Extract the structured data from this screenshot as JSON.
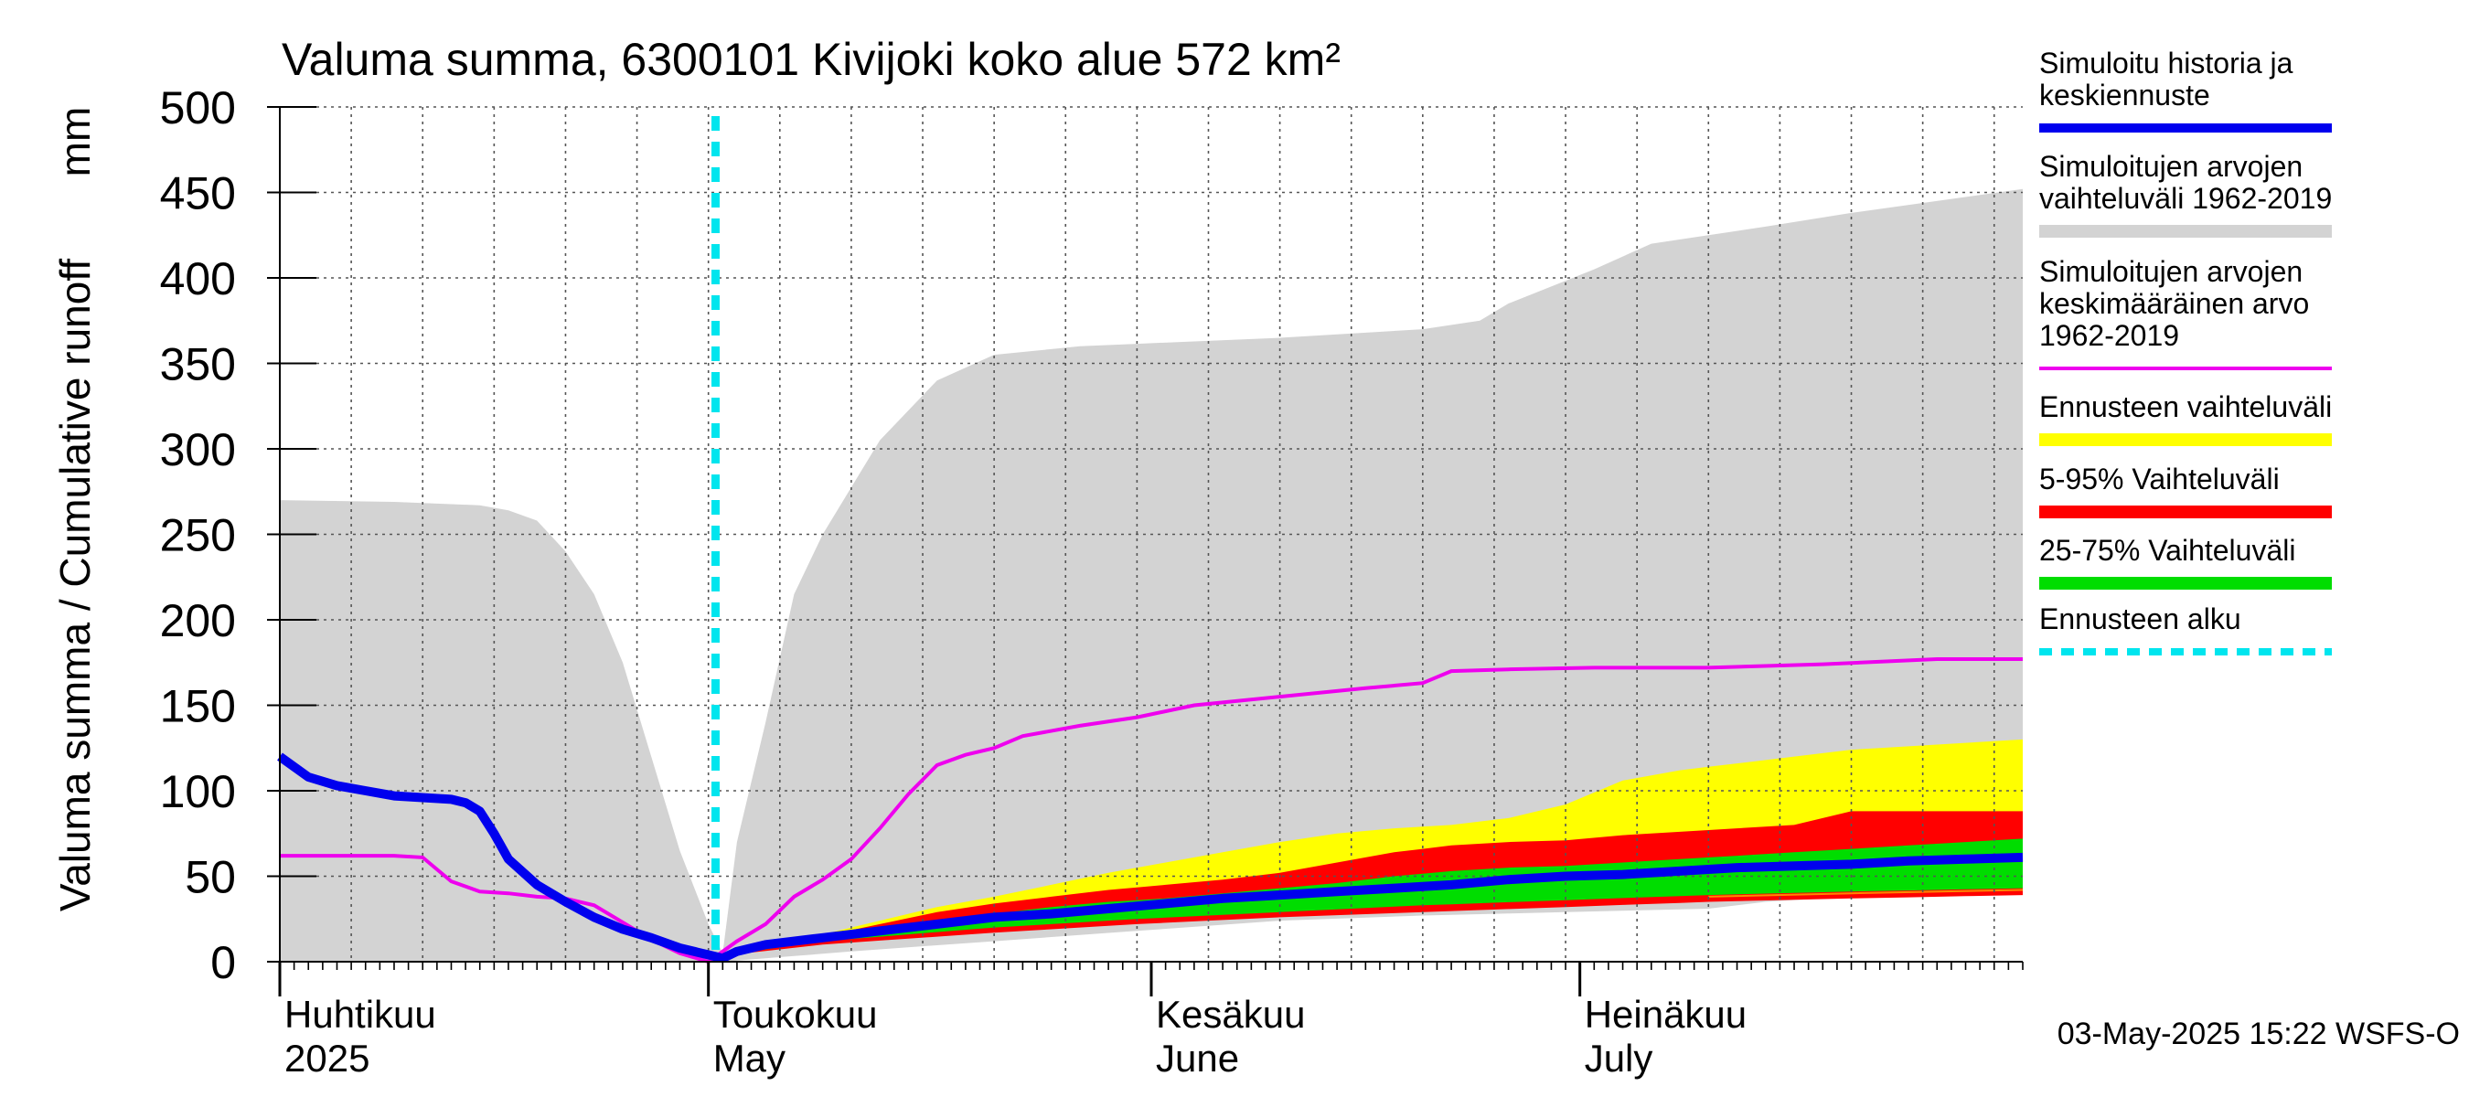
{
  "chart_data": {
    "type": "area",
    "title": "Valuma summa, 6300101 Kivijoki koko alue 572 km²",
    "ylabel": "Valuma summa / Cumulative runoff",
    "yunit": "mm",
    "ylim": [
      0,
      500
    ],
    "yticks": [
      0,
      50,
      100,
      150,
      200,
      250,
      300,
      350,
      400,
      450,
      500
    ],
    "xlim_days": [
      0,
      122
    ],
    "month_ticks": [
      {
        "day": 0,
        "label_fi": "Huhtikuu",
        "label_en": "2025"
      },
      {
        "day": 30,
        "label_fi": "Toukokuu",
        "label_en": "May"
      },
      {
        "day": 61,
        "label_fi": "Kesäkuu",
        "label_en": "June"
      },
      {
        "day": 91,
        "label_fi": "Heinäkuu",
        "label_en": "July"
      }
    ],
    "forecast_start_day": 30.5,
    "legend": [
      {
        "label": "Simuloitu historia ja keskiennuste",
        "color": "#0000ee",
        "style": "line"
      },
      {
        "label": "Simuloitujen arvojen vaihteluväli 1962-2019",
        "color": "#d3d3d3",
        "style": "band"
      },
      {
        "label": "Simuloitujen arvojen keskimääräinen arvo 1962-2019",
        "color": "#ee00ee",
        "style": "line"
      },
      {
        "label": "Ennusteen vaihteluväli",
        "color": "#ffff00",
        "style": "band"
      },
      {
        "label": "5-95% Vaihteluväli",
        "color": "#ff0000",
        "style": "band"
      },
      {
        "label": "25-75% Vaihteluväli",
        "color": "#00dd00",
        "style": "band"
      },
      {
        "label": "Ennusteen alku",
        "color": "#00e5ee",
        "style": "dashed"
      }
    ],
    "series": {
      "gray_range_upper": [
        [
          0,
          270
        ],
        [
          8,
          269
        ],
        [
          14,
          267
        ],
        [
          16,
          264
        ],
        [
          18,
          258
        ],
        [
          20,
          240
        ],
        [
          22,
          215
        ],
        [
          24,
          175
        ],
        [
          26,
          120
        ],
        [
          28,
          65
        ],
        [
          30,
          22
        ],
        [
          31,
          5
        ],
        [
          32,
          70
        ],
        [
          34,
          140
        ],
        [
          36,
          215
        ],
        [
          38,
          250
        ],
        [
          42,
          305
        ],
        [
          46,
          340
        ],
        [
          50,
          355
        ],
        [
          56,
          360
        ],
        [
          70,
          365
        ],
        [
          80,
          370
        ],
        [
          84,
          375
        ],
        [
          86,
          385
        ],
        [
          92,
          405
        ],
        [
          96,
          420
        ],
        [
          104,
          430
        ],
        [
          110,
          438
        ],
        [
          122,
          452
        ]
      ],
      "gray_range_lower": [
        [
          0,
          0
        ],
        [
          30,
          0
        ],
        [
          31,
          0
        ],
        [
          40,
          6
        ],
        [
          50,
          12
        ],
        [
          60,
          18
        ],
        [
          70,
          24
        ],
        [
          80,
          27
        ],
        [
          90,
          29
        ],
        [
          100,
          31
        ],
        [
          104,
          35
        ],
        [
          110,
          38
        ],
        [
          122,
          40
        ]
      ],
      "mean_1962_2019": [
        [
          0,
          62
        ],
        [
          8,
          62
        ],
        [
          10,
          61
        ],
        [
          12,
          47
        ],
        [
          14,
          41
        ],
        [
          16,
          40
        ],
        [
          18,
          38
        ],
        [
          20,
          37
        ],
        [
          22,
          33
        ],
        [
          24,
          23
        ],
        [
          26,
          13
        ],
        [
          28,
          5
        ],
        [
          30,
          0
        ],
        [
          32,
          12
        ],
        [
          34,
          22
        ],
        [
          36,
          38
        ],
        [
          38,
          48
        ],
        [
          40,
          60
        ],
        [
          42,
          78
        ],
        [
          44,
          98
        ],
        [
          46,
          115
        ],
        [
          48,
          121
        ],
        [
          50,
          125
        ],
        [
          52,
          132
        ],
        [
          56,
          138
        ],
        [
          60,
          143
        ],
        [
          64,
          150
        ],
        [
          70,
          155
        ],
        [
          76,
          160
        ],
        [
          80,
          163
        ],
        [
          82,
          170
        ],
        [
          86,
          171
        ],
        [
          92,
          172
        ],
        [
          100,
          172
        ],
        [
          108,
          174
        ],
        [
          116,
          177
        ],
        [
          122,
          177
        ]
      ],
      "yellow_upper": [
        [
          30.5,
          3
        ],
        [
          34,
          10
        ],
        [
          38,
          16
        ],
        [
          42,
          24
        ],
        [
          46,
          32
        ],
        [
          50,
          38
        ],
        [
          54,
          45
        ],
        [
          58,
          52
        ],
        [
          62,
          58
        ],
        [
          66,
          64
        ],
        [
          70,
          70
        ],
        [
          74,
          75
        ],
        [
          78,
          78
        ],
        [
          82,
          80
        ],
        [
          86,
          84
        ],
        [
          90,
          92
        ],
        [
          94,
          106
        ],
        [
          98,
          112
        ],
        [
          102,
          116
        ],
        [
          106,
          120
        ],
        [
          110,
          124
        ],
        [
          114,
          126
        ],
        [
          118,
          128
        ],
        [
          122,
          130
        ]
      ],
      "yellow_lower": [
        [
          30.5,
          3
        ],
        [
          38,
          12
        ],
        [
          50,
          20
        ],
        [
          60,
          26
        ],
        [
          70,
          30
        ],
        [
          80,
          34
        ],
        [
          90,
          36
        ],
        [
          100,
          38
        ],
        [
          110,
          40
        ],
        [
          122,
          42
        ]
      ],
      "red_upper": [
        [
          30.5,
          3
        ],
        [
          34,
          10
        ],
        [
          38,
          15
        ],
        [
          42,
          22
        ],
        [
          46,
          29
        ],
        [
          50,
          34
        ],
        [
          54,
          38
        ],
        [
          58,
          42
        ],
        [
          62,
          45
        ],
        [
          66,
          48
        ],
        [
          70,
          52
        ],
        [
          74,
          58
        ],
        [
          78,
          64
        ],
        [
          82,
          68
        ],
        [
          86,
          70
        ],
        [
          90,
          71
        ],
        [
          94,
          74
        ],
        [
          98,
          76
        ],
        [
          102,
          78
        ],
        [
          106,
          80
        ],
        [
          110,
          88
        ],
        [
          114,
          88
        ],
        [
          118,
          88
        ],
        [
          122,
          88
        ]
      ],
      "red_lower": [
        [
          30.5,
          3
        ],
        [
          38,
          10
        ],
        [
          50,
          17
        ],
        [
          60,
          22
        ],
        [
          70,
          26
        ],
        [
          80,
          29
        ],
        [
          90,
          32
        ],
        [
          100,
          35
        ],
        [
          110,
          37
        ],
        [
          122,
          39
        ]
      ],
      "green_upper": [
        [
          30.5,
          3
        ],
        [
          34,
          10
        ],
        [
          38,
          14
        ],
        [
          42,
          19
        ],
        [
          46,
          24
        ],
        [
          50,
          28
        ],
        [
          54,
          32
        ],
        [
          58,
          35
        ],
        [
          62,
          37
        ],
        [
          66,
          40
        ],
        [
          70,
          43
        ],
        [
          74,
          46
        ],
        [
          78,
          50
        ],
        [
          82,
          53
        ],
        [
          86,
          55
        ],
        [
          90,
          56
        ],
        [
          94,
          58
        ],
        [
          98,
          60
        ],
        [
          102,
          62
        ],
        [
          106,
          64
        ],
        [
          110,
          66
        ],
        [
          114,
          68
        ],
        [
          118,
          70
        ],
        [
          122,
          72
        ]
      ],
      "green_lower": [
        [
          30.5,
          3
        ],
        [
          38,
          12
        ],
        [
          50,
          20
        ],
        [
          60,
          25
        ],
        [
          70,
          29
        ],
        [
          80,
          33
        ],
        [
          90,
          36
        ],
        [
          100,
          39
        ],
        [
          110,
          41
        ],
        [
          122,
          43
        ]
      ],
      "history_and_median": [
        [
          0,
          120
        ],
        [
          2,
          108
        ],
        [
          4,
          103
        ],
        [
          6,
          100
        ],
        [
          8,
          97
        ],
        [
          10,
          96
        ],
        [
          12,
          95
        ],
        [
          13,
          93
        ],
        [
          14,
          88
        ],
        [
          15,
          75
        ],
        [
          16,
          60
        ],
        [
          18,
          45
        ],
        [
          20,
          35
        ],
        [
          22,
          26
        ],
        [
          24,
          19
        ],
        [
          26,
          14
        ],
        [
          28,
          8
        ],
        [
          30,
          4
        ],
        [
          30.5,
          3
        ],
        [
          31,
          2
        ],
        [
          32,
          6
        ],
        [
          34,
          10
        ],
        [
          38,
          14
        ],
        [
          42,
          18
        ],
        [
          46,
          22
        ],
        [
          50,
          26
        ],
        [
          54,
          28
        ],
        [
          58,
          31
        ],
        [
          62,
          34
        ],
        [
          66,
          37
        ],
        [
          70,
          39
        ],
        [
          74,
          41
        ],
        [
          78,
          43
        ],
        [
          82,
          45
        ],
        [
          86,
          48
        ],
        [
          90,
          50
        ],
        [
          94,
          51
        ],
        [
          98,
          53
        ],
        [
          102,
          55
        ],
        [
          106,
          56
        ],
        [
          110,
          57
        ],
        [
          114,
          59
        ],
        [
          118,
          60
        ],
        [
          122,
          61
        ]
      ]
    },
    "footer_timestamp": "03-May-2025 15:22 WSFS-O"
  }
}
